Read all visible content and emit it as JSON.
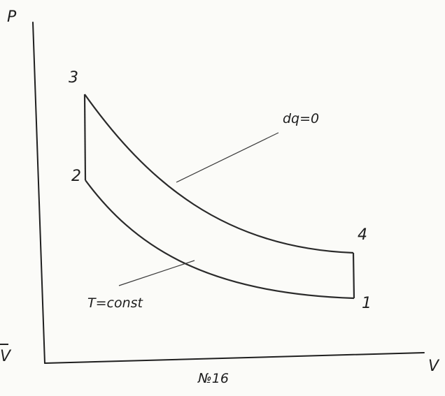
{
  "diagram": {
    "axes": {
      "y_label": "P",
      "x_label": "V"
    },
    "points": {
      "p1": "1",
      "p2": "2",
      "p3": "3",
      "p4": "4"
    },
    "annotations": {
      "adiabatic": "dq=0",
      "isothermal": "T=const"
    },
    "caption": "№16",
    "left_edge_fragment": "V"
  }
}
